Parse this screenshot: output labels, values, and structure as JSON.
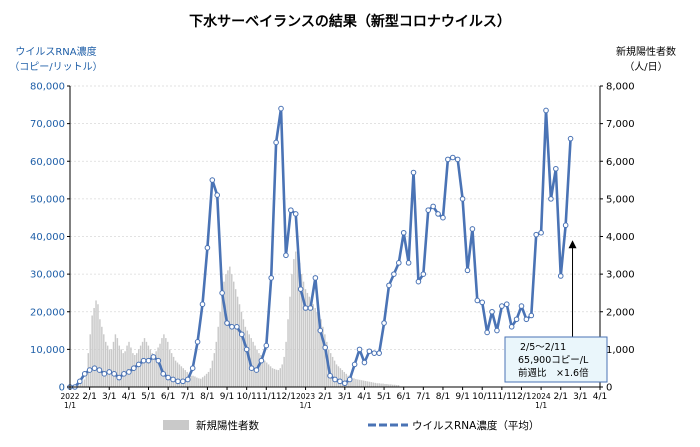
{
  "chart_data": {
    "type": "bar+line",
    "title": "下水サーベイランスの結果（新型コロナウイルス）",
    "left_axis_label": [
      "ウイルスRNA濃度",
      "（コピー/リットル）"
    ],
    "right_axis_label": [
      "新規陽性者数",
      "（人/日）"
    ],
    "left_ylim": [
      0,
      80000
    ],
    "right_ylim": [
      0,
      8000
    ],
    "left_ticks": [
      "0",
      "10,000",
      "20,000",
      "30,000",
      "40,000",
      "50,000",
      "60,000",
      "70,000",
      "80,000"
    ],
    "right_ticks": [
      "0",
      "1,000",
      "2,000",
      "3,000",
      "4,000",
      "5,000",
      "6,000",
      "7,000",
      "8,000"
    ],
    "x_ticks": [
      {
        "label": "2022",
        "sub": "1/1"
      },
      {
        "label": "2/1"
      },
      {
        "label": "3/1"
      },
      {
        "label": "4/1"
      },
      {
        "label": "5/1"
      },
      {
        "label": "6/1"
      },
      {
        "label": "7/1"
      },
      {
        "label": "8/1"
      },
      {
        "label": "9/1"
      },
      {
        "label": "10/1"
      },
      {
        "label": "11/1"
      },
      {
        "label": "12/1"
      },
      {
        "label": "2023",
        "sub": "1/1"
      },
      {
        "label": "2/1"
      },
      {
        "label": "3/1"
      },
      {
        "label": "4/1"
      },
      {
        "label": "5/1"
      },
      {
        "label": "6/1"
      },
      {
        "label": "7/1"
      },
      {
        "label": "8/1"
      },
      {
        "label": "9/1"
      },
      {
        "label": "10/1"
      },
      {
        "label": "11/1"
      },
      {
        "label": "12/1"
      },
      {
        "label": "2024",
        "sub": "1/1"
      },
      {
        "label": "2/1"
      },
      {
        "label": "3/1"
      },
      {
        "label": "4/1"
      }
    ],
    "series": [
      {
        "name": "ウイルスRNA濃度(平均)",
        "axis": "left",
        "color": "#4a73b5",
        "x": [
          0,
          0.25,
          0.5,
          0.75,
          1,
          1.25,
          1.5,
          1.75,
          2,
          2.25,
          2.5,
          2.75,
          3,
          3.25,
          3.5,
          3.75,
          4,
          4.25,
          4.5,
          4.75,
          5,
          5.25,
          5.5,
          5.75,
          6,
          6.25,
          6.5,
          6.75,
          7,
          7.25,
          7.5,
          7.75,
          8,
          8.25,
          8.5,
          8.75,
          9,
          9.25,
          9.5,
          9.75,
          10,
          10.25,
          10.5,
          10.75,
          11,
          11.25,
          11.5,
          11.75,
          12,
          12.25,
          12.5,
          12.75,
          13,
          13.25,
          13.5,
          13.75,
          14,
          14.25,
          14.5,
          14.75,
          15,
          15.25,
          15.5,
          15.75,
          16,
          16.25,
          16.5,
          16.75,
          17,
          17.25,
          17.5,
          17.75,
          18,
          18.25,
          18.5,
          18.75,
          19,
          19.25,
          19.5,
          19.75,
          20,
          20.25,
          20.5,
          20.75,
          21,
          21.25,
          21.5,
          21.75,
          22,
          22.25,
          22.5,
          22.75,
          23,
          23.25,
          23.5,
          23.75,
          24,
          24.25,
          24.5,
          24.75,
          25,
          25.25,
          25.5
        ],
        "values": [
          0,
          0,
          1500,
          3500,
          4500,
          5000,
          4500,
          3500,
          4000,
          3500,
          2500,
          3500,
          4000,
          5000,
          6000,
          7000,
          7000,
          8000,
          7000,
          3500,
          2500,
          2000,
          1500,
          1500,
          2000,
          5000,
          12000,
          22000,
          37000,
          55000,
          51000,
          25000,
          17000,
          16000,
          16000,
          14000,
          10000,
          5000,
          4500,
          7000,
          11000,
          29000,
          65000,
          74000,
          35000,
          47000,
          46000,
          26000,
          21000,
          21000,
          29000,
          15000,
          10500,
          3000,
          2000,
          1500,
          1000,
          2000,
          6000,
          10000,
          6500,
          9500,
          9000,
          9000,
          17000,
          27000,
          30000,
          33000,
          41000,
          33000,
          57000,
          28000,
          30000,
          47000,
          48000,
          46000,
          45000,
          60500,
          61000,
          60500,
          50000,
          31000,
          42000,
          23000,
          22500,
          14500,
          20000,
          15000,
          21500,
          22000,
          16000,
          18000,
          21500,
          18000,
          19000,
          40500,
          41000,
          73500,
          50000,
          58000,
          29500,
          43000,
          66000
        ],
        "dots": true
      },
      {
        "name": "新規陽性者数",
        "axis": "right",
        "color": "#c9c9c9",
        "x_range": [
          0.4,
          16.8
        ],
        "values": [
          50,
          80,
          120,
          200,
          400,
          900,
          1400,
          1900,
          2100,
          2300,
          2200,
          1800,
          1600,
          1400,
          1200,
          1100,
          1000,
          1000,
          1200,
          1400,
          1300,
          1100,
          1000,
          900,
          950,
          1100,
          1200,
          1050,
          900,
          850,
          900,
          1000,
          1100,
          1200,
          1300,
          1200,
          1100,
          1000,
          900,
          850,
          950,
          1050,
          1150,
          1300,
          1400,
          1300,
          1200,
          1000,
          900,
          800,
          700,
          650,
          600,
          550,
          500,
          450,
          400,
          350,
          300,
          300,
          280,
          250,
          230,
          220,
          260,
          300,
          350,
          400,
          500,
          700,
          900,
          1200,
          1600,
          2000,
          2400,
          2800,
          3000,
          3100,
          3200,
          3000,
          2800,
          2600,
          2400,
          2200,
          2000,
          1800,
          1600,
          1500,
          1400,
          1300,
          1200,
          1100,
          1000,
          900,
          850,
          800,
          700,
          650,
          600,
          550,
          500,
          480,
          460,
          450,
          500,
          600,
          800,
          1200,
          1800,
          2400,
          3000,
          3400,
          3600,
          3500,
          3300,
          3000,
          2800,
          2600,
          2500,
          2400,
          2300,
          2200,
          2100,
          2000,
          1900,
          1800,
          1600,
          1400,
          1200,
          1000,
          900,
          800,
          700,
          600,
          550,
          500,
          450,
          400,
          350,
          300,
          280,
          250,
          230,
          210,
          200,
          190,
          180,
          170,
          160,
          150,
          140,
          130,
          120,
          110,
          100,
          100,
          90,
          90,
          80,
          80,
          70,
          70,
          60,
          60,
          50,
          50
        ]
      }
    ],
    "legend": [
      {
        "label": "新規陽性者数",
        "kind": "bar"
      },
      {
        "label": "ウイルスRNA濃度（平均）",
        "kind": "line"
      }
    ],
    "annotation": {
      "lines": [
        "2/5～2/11",
        "65,900コピー/L",
        "前週比　×1.6倍"
      ],
      "arrow_target_x": 25.6,
      "arrow_target_value": 39000
    }
  }
}
